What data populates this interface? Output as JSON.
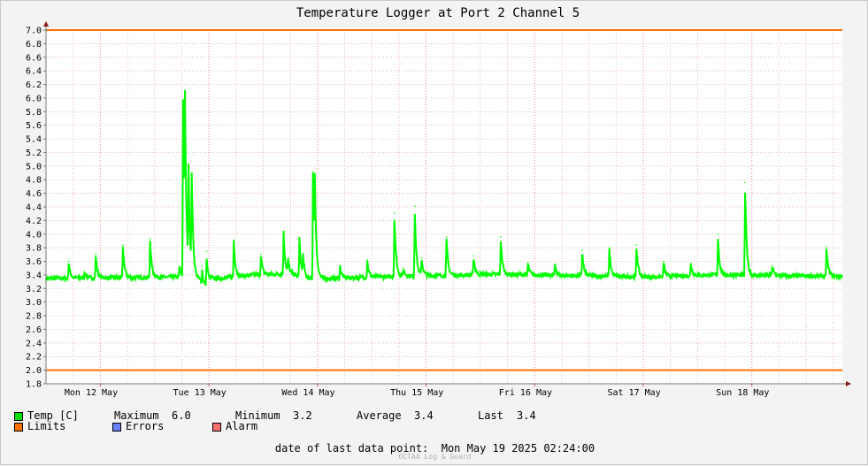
{
  "chart_data": {
    "type": "line",
    "title": "Temperature Logger at Port 2 Channel 5",
    "ylim": [
      1.8,
      7.0
    ],
    "yticks": [
      "1.8",
      "2.0",
      "2.2",
      "2.4",
      "2.6",
      "2.8",
      "3.0",
      "3.2",
      "3.4",
      "3.6",
      "3.8",
      "4.0",
      "4.2",
      "4.4",
      "4.6",
      "4.8",
      "5.0",
      "5.2",
      "5.4",
      "5.6",
      "5.8",
      "6.0",
      "6.2",
      "6.4",
      "6.6",
      "6.8",
      "7.0"
    ],
    "xlim_hours": [
      0,
      176
    ],
    "x_day_labels": [
      "Mon 12 May",
      "Tue 13 May",
      "Wed 14 May",
      "Thu 15 May",
      "Fri 16 May",
      "Sat 17 May",
      "Sun 18 May"
    ],
    "grid": true,
    "limits": {
      "upper": 7.0,
      "lower": 2.0,
      "color": "#ff6f00"
    },
    "series": [
      {
        "name": "Temp [C]",
        "color": "#00ff00",
        "baseline": [
          {
            "h": 0,
            "v": 3.35
          },
          {
            "h": 30,
            "v": 3.37
          },
          {
            "h": 34,
            "v": 3.33
          },
          {
            "h": 40,
            "v": 3.36
          },
          {
            "h": 46,
            "v": 3.4
          },
          {
            "h": 54,
            "v": 3.42
          },
          {
            "h": 58,
            "v": 3.34
          },
          {
            "h": 78,
            "v": 3.38
          },
          {
            "h": 100,
            "v": 3.41
          },
          {
            "h": 124,
            "v": 3.38
          },
          {
            "h": 134,
            "v": 3.37
          },
          {
            "h": 146,
            "v": 3.4
          },
          {
            "h": 176,
            "v": 3.38
          }
        ],
        "spikes": [
          {
            "h": 5.0,
            "v": 3.6
          },
          {
            "h": 8.5,
            "v": 3.45
          },
          {
            "h": 11.0,
            "v": 3.7
          },
          {
            "h": 17.0,
            "v": 3.84
          },
          {
            "h": 23.0,
            "v": 3.93
          },
          {
            "h": 29.5,
            "v": 3.52
          },
          {
            "h": 30.3,
            "v": 5.97
          },
          {
            "h": 30.7,
            "v": 5.3
          },
          {
            "h": 31.5,
            "v": 4.73
          },
          {
            "h": 32.2,
            "v": 4.7
          },
          {
            "h": 34.5,
            "v": 3.53
          },
          {
            "h": 35.5,
            "v": 3.75
          },
          {
            "h": 41.5,
            "v": 3.91
          },
          {
            "h": 47.5,
            "v": 3.7
          },
          {
            "h": 52.5,
            "v": 4.03
          },
          {
            "h": 53.5,
            "v": 3.6
          },
          {
            "h": 56.0,
            "v": 3.95
          },
          {
            "h": 56.8,
            "v": 3.65
          },
          {
            "h": 59.0,
            "v": 4.91
          },
          {
            "h": 59.4,
            "v": 4.38
          },
          {
            "h": 65.0,
            "v": 3.53
          },
          {
            "h": 71.0,
            "v": 3.62
          },
          {
            "h": 77.0,
            "v": 4.31
          },
          {
            "h": 79.0,
            "v": 3.5
          },
          {
            "h": 81.5,
            "v": 4.41
          },
          {
            "h": 83.0,
            "v": 3.65
          },
          {
            "h": 88.5,
            "v": 3.96
          },
          {
            "h": 94.5,
            "v": 3.68
          },
          {
            "h": 100.5,
            "v": 3.96
          },
          {
            "h": 106.5,
            "v": 3.58
          },
          {
            "h": 112.5,
            "v": 3.56
          },
          {
            "h": 118.5,
            "v": 3.76
          },
          {
            "h": 124.5,
            "v": 3.8
          },
          {
            "h": 130.5,
            "v": 3.84
          },
          {
            "h": 136.5,
            "v": 3.6
          },
          {
            "h": 142.5,
            "v": 3.57
          },
          {
            "h": 148.5,
            "v": 4.0
          },
          {
            "h": 154.5,
            "v": 4.76
          },
          {
            "h": 160.5,
            "v": 3.54
          },
          {
            "h": 172.5,
            "v": 3.81
          }
        ]
      }
    ]
  },
  "legend": {
    "temp_label": "Temp [C]",
    "maximum_label": "Maximum",
    "maximum_value": "6.0",
    "minimum_label": "Minimum",
    "minimum_value": "3.2",
    "average_label": "Average",
    "average_value": "3.4",
    "last_label": "Last",
    "last_value": "3.4",
    "limits_label": "Limits",
    "errors_label": "Errors",
    "alarm_label": "Alarm",
    "colors": {
      "temp": "#00e000",
      "limits": "#ff6f00",
      "errors": "#6a7fff",
      "alarm": "#ff7070"
    }
  },
  "footer": {
    "date_label": "date of last data point:",
    "date_value": "Mon May 19 2025 02:24:00",
    "watermark": "OCTAA Log & Guard"
  }
}
